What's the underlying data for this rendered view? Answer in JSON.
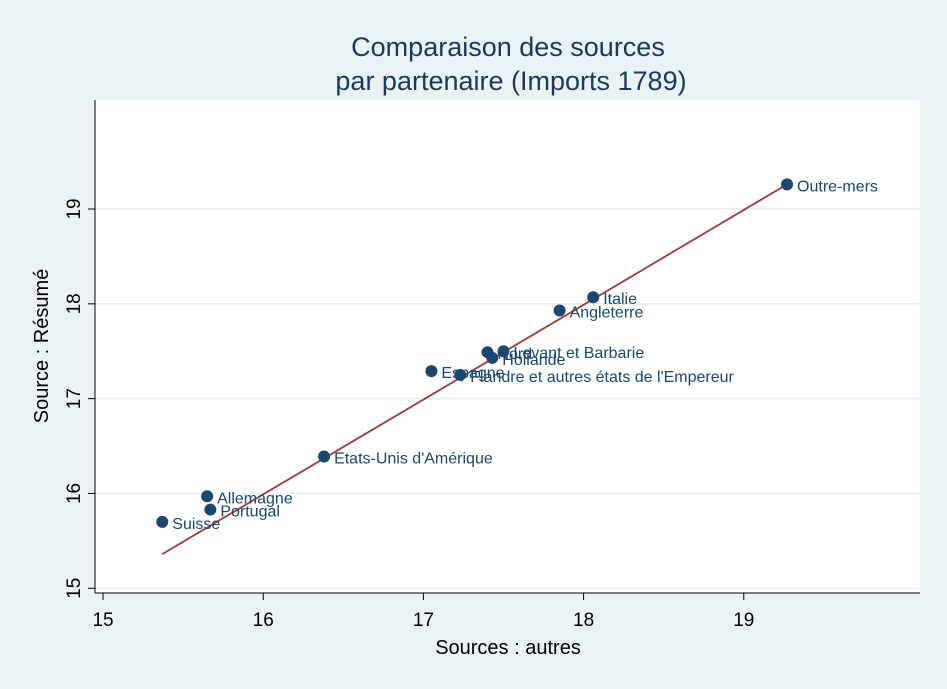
{
  "chart_data": {
    "type": "scatter",
    "title": "Comparaison des sources",
    "subtitle": "par partenaire (Imports 1789)",
    "xlabel": "Sources : autres",
    "ylabel": "Source : Résumé",
    "xlim": [
      14.95,
      20.1
    ],
    "ylim": [
      14.95,
      20.15
    ],
    "x_ticks": [
      "15",
      "16",
      "17",
      "18",
      "19"
    ],
    "y_ticks": [
      "15",
      "16",
      "17",
      "18",
      "19"
    ],
    "grid": "horizontal",
    "legend": "none",
    "colors": {
      "point": "#1a476f",
      "fit_line": "#a03a3a",
      "grid": "#e3ecee",
      "background": "#eaf2f3",
      "plot_background": "#ffffff"
    },
    "points": [
      {
        "label": "Outre-mers",
        "x": 19.27,
        "y": 19.26
      },
      {
        "label": "Italie",
        "x": 18.06,
        "y": 18.07
      },
      {
        "label": "Angleterre",
        "x": 17.85,
        "y": 17.93
      },
      {
        "label": "Levant et Barbarie",
        "x": 17.5,
        "y": 17.5
      },
      {
        "label": "Nord",
        "x": 17.4,
        "y": 17.49
      },
      {
        "label": "Hollande",
        "x": 17.43,
        "y": 17.43
      },
      {
        "label": "Espagne",
        "x": 17.05,
        "y": 17.29
      },
      {
        "label": "Flandre et autres états de l'Empereur",
        "x": 17.23,
        "y": 17.25
      },
      {
        "label": "Etats-Unis d'Amérique",
        "x": 16.38,
        "y": 16.39
      },
      {
        "label": "Allemagne",
        "x": 15.65,
        "y": 15.97
      },
      {
        "label": "Portugal",
        "x": 15.67,
        "y": 15.83
      },
      {
        "label": "Suisse",
        "x": 15.37,
        "y": 15.7
      }
    ],
    "fit_line": {
      "x": [
        15.37,
        19.27
      ],
      "y": [
        15.36,
        19.26
      ]
    }
  }
}
